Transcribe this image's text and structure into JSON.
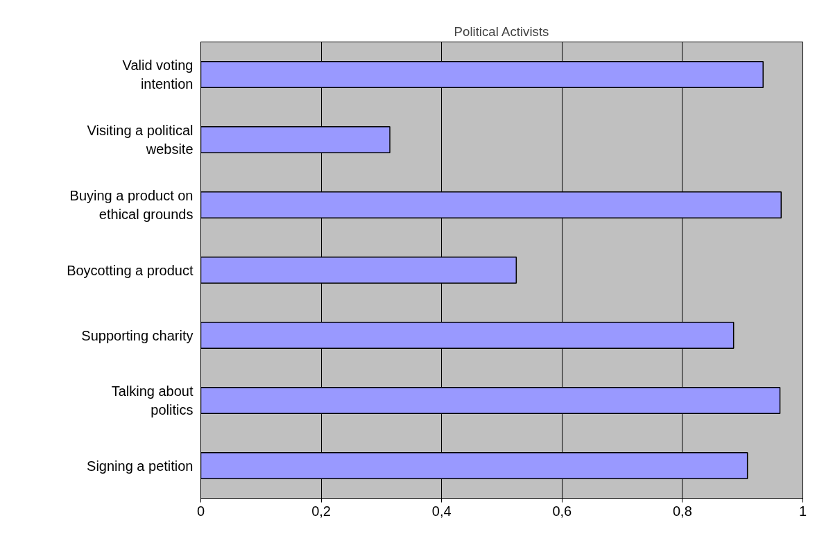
{
  "chart_data": {
    "type": "bar",
    "orientation": "horizontal",
    "title": "Political Activists",
    "categories": [
      "Valid voting intention",
      "Visiting a political website",
      "Buying a product on ethical grounds",
      "Boycotting a product",
      "Supporting charity",
      "Talking about politics",
      "Signing a petition"
    ],
    "values": [
      0.934,
      0.314,
      0.964,
      0.524,
      0.885,
      0.962,
      0.908
    ],
    "color": "#9999ff",
    "xlim": [
      0,
      1
    ],
    "xticks": [
      0,
      {
        "value": 0.2,
        "label": "0,2"
      },
      {
        "value": 0.4,
        "label": "0,4"
      },
      {
        "value": 0.6,
        "label": "0,6"
      },
      {
        "value": 0.8,
        "label": "0,8"
      },
      1
    ],
    "grid": "x"
  }
}
